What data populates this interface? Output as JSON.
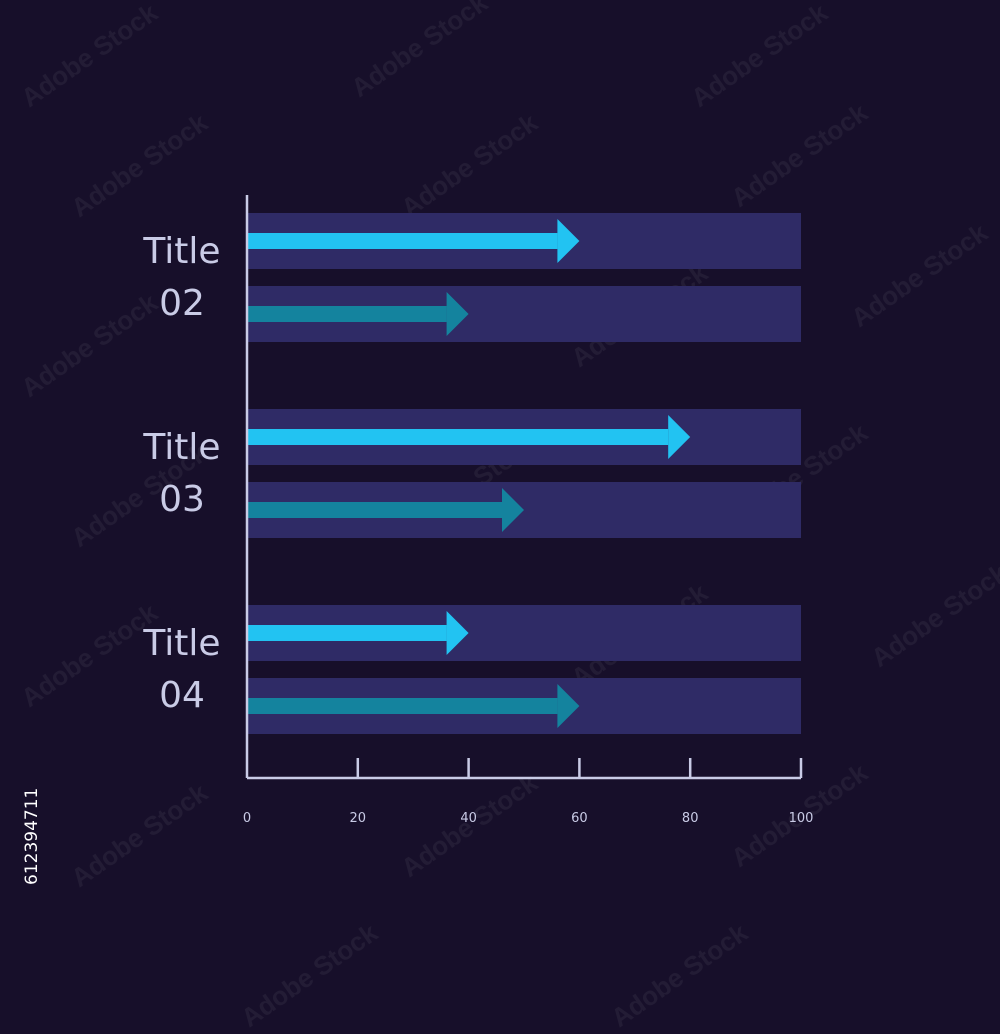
{
  "chart_data": {
    "type": "bar",
    "categories": [
      "Title 02",
      "Title 03",
      "Title 04"
    ],
    "category_lines": [
      [
        "Title",
        "02"
      ],
      [
        "Title",
        "03"
      ],
      [
        "Title",
        "04"
      ]
    ],
    "series": [
      {
        "values": [
          60,
          80,
          40
        ],
        "color": "#22c3f2"
      },
      {
        "values": [
          40,
          50,
          60
        ],
        "color": "#14839e"
      }
    ],
    "xlim": [
      0,
      100
    ],
    "x_ticks": [
      "0",
      "20",
      "40",
      "60",
      "80",
      "100"
    ],
    "grid": false,
    "track_color": "#2f2b66",
    "axis_color": "#c9cbe6"
  },
  "stock_id": "612394711",
  "watermark": "Adobe Stock",
  "colors": {
    "background": "#170f2a"
  }
}
